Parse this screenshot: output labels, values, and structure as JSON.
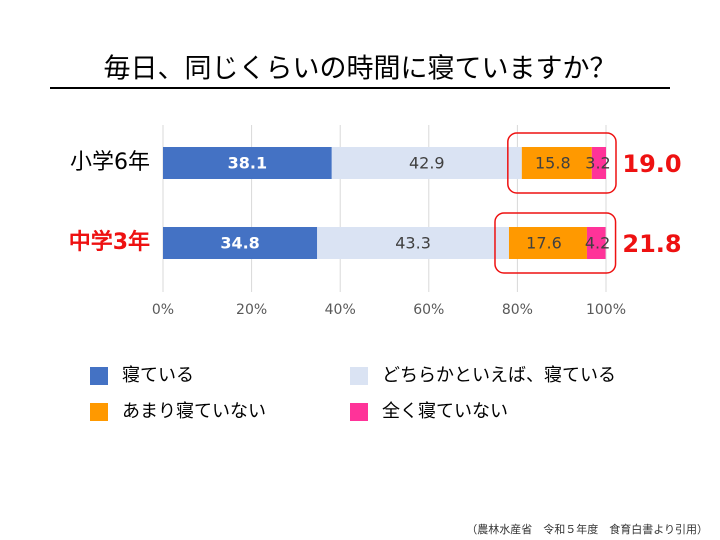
{
  "chart_data": {
    "type": "stacked_barh",
    "title": "毎日、同じくらいの時間に寝ていますか？",
    "categories": [
      "小学6年",
      "中学3年"
    ],
    "category_colors": [
      "#000000",
      "#ee1111"
    ],
    "series": [
      {
        "name": "寝ている",
        "color": "#4472c4",
        "label_color": "#ffffff",
        "values": [
          38.1,
          34.8
        ]
      },
      {
        "name": "どちらかといえば、寝ている",
        "color": "#dae3f3",
        "label_color": "#404040",
        "values": [
          42.9,
          43.3
        ]
      },
      {
        "name": "あまり寝ていない",
        "color": "#ff9900",
        "label_color": "#404040",
        "values": [
          15.8,
          17.6
        ]
      },
      {
        "name": "全く寝ていない",
        "color": "#ff3399",
        "label_color": "#404040",
        "values": [
          3.2,
          4.2
        ]
      }
    ],
    "annotations": [
      "19.0",
      "21.8"
    ],
    "annotation_color": "#ee1111",
    "xlim": [
      0,
      100
    ],
    "xticks": [
      {
        "value": 0,
        "label": "0%"
      },
      {
        "value": 20,
        "label": "20%"
      },
      {
        "value": 40,
        "label": "40%"
      },
      {
        "value": 60,
        "label": "60%"
      },
      {
        "value": 80,
        "label": "80%"
      },
      {
        "value": 100,
        "label": "100%"
      }
    ],
    "grid": true,
    "source": "（農林水産省　令和５年度　食育白書より引用）"
  }
}
